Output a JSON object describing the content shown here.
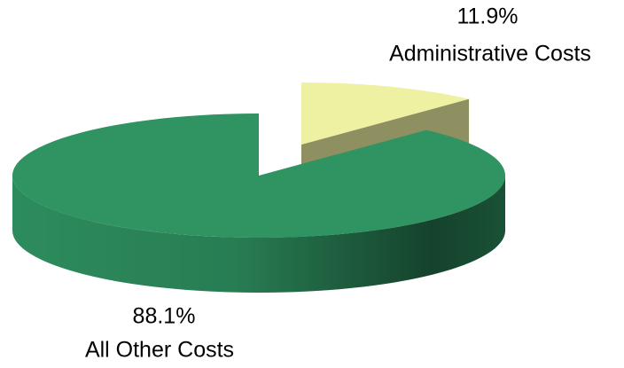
{
  "chart_data": {
    "type": "pie",
    "categories": [
      "Administrative Costs",
      "All Other Costs"
    ],
    "values": [
      11.9,
      88.1
    ],
    "value_labels": [
      "11.9%",
      "88.1%"
    ],
    "colors": [
      "#eef0a2",
      "#2f9362"
    ]
  }
}
